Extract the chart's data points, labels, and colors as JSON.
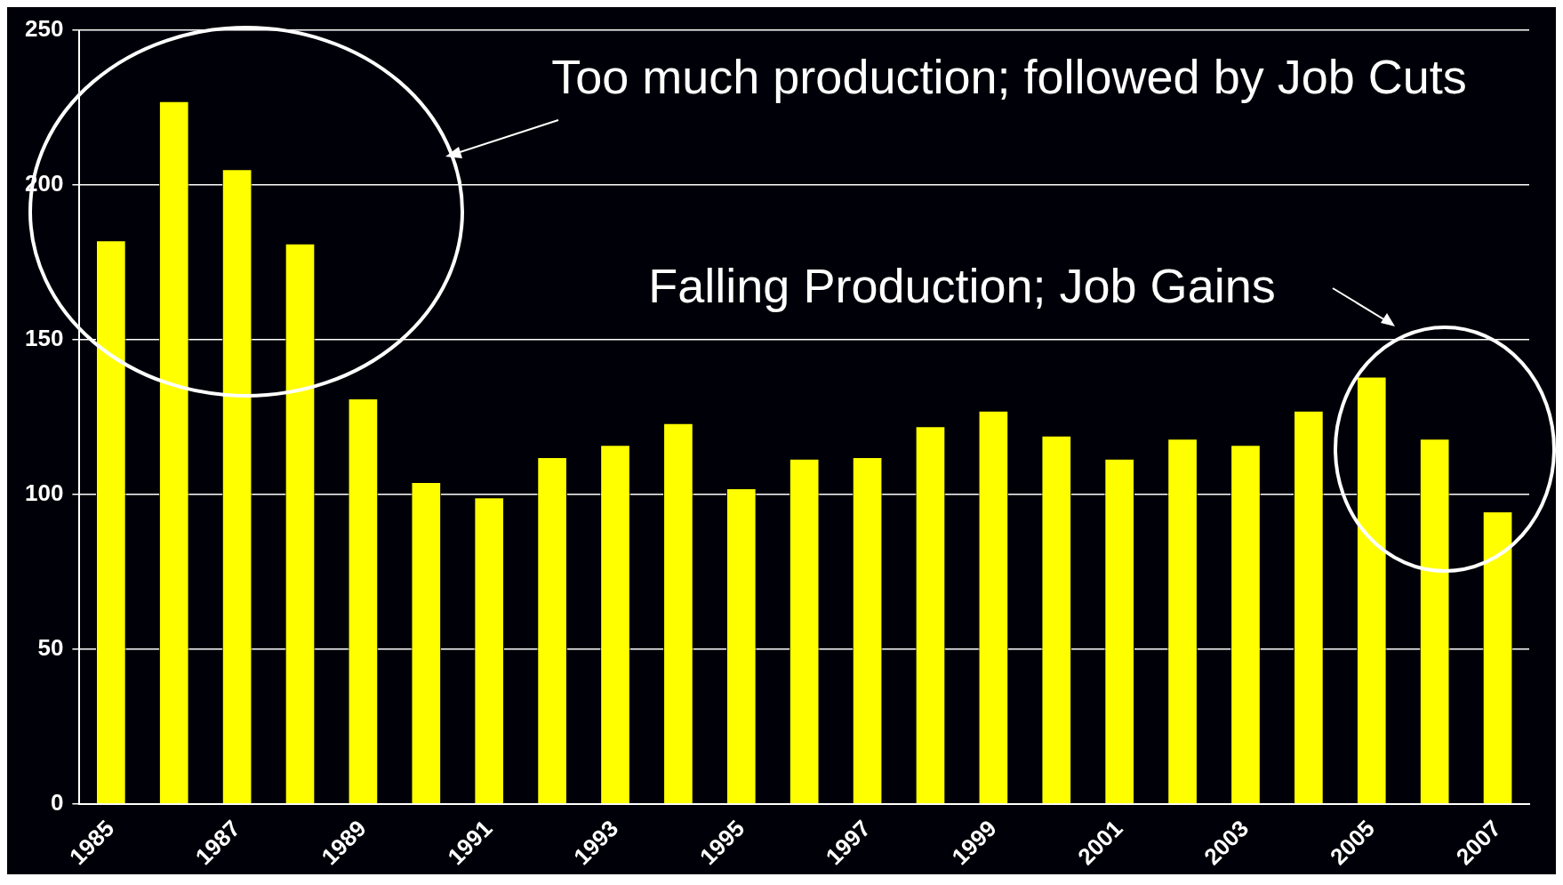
{
  "chart_data": {
    "type": "bar",
    "categories": [
      "1985",
      null,
      "1987",
      null,
      "1989",
      null,
      "1991",
      null,
      "1993",
      null,
      "1995",
      null,
      "1997",
      null,
      "1999",
      null,
      "2001",
      null,
      "2003",
      null,
      "2005",
      null,
      "2007"
    ],
    "values": [
      182,
      227,
      205,
      181,
      131,
      104,
      99,
      112,
      116,
      123,
      102,
      111.5,
      112,
      122,
      127,
      119,
      111.5,
      118,
      116,
      127,
      138,
      118,
      94.5
    ],
    "color": "#ffff00",
    "ylim": [
      0,
      250
    ],
    "yticks": [
      0,
      50,
      100,
      150,
      200,
      250
    ],
    "grid": "y",
    "annotations": [
      "Too much production; followed by Job Cuts",
      "Falling Production; Job Gains"
    ]
  }
}
